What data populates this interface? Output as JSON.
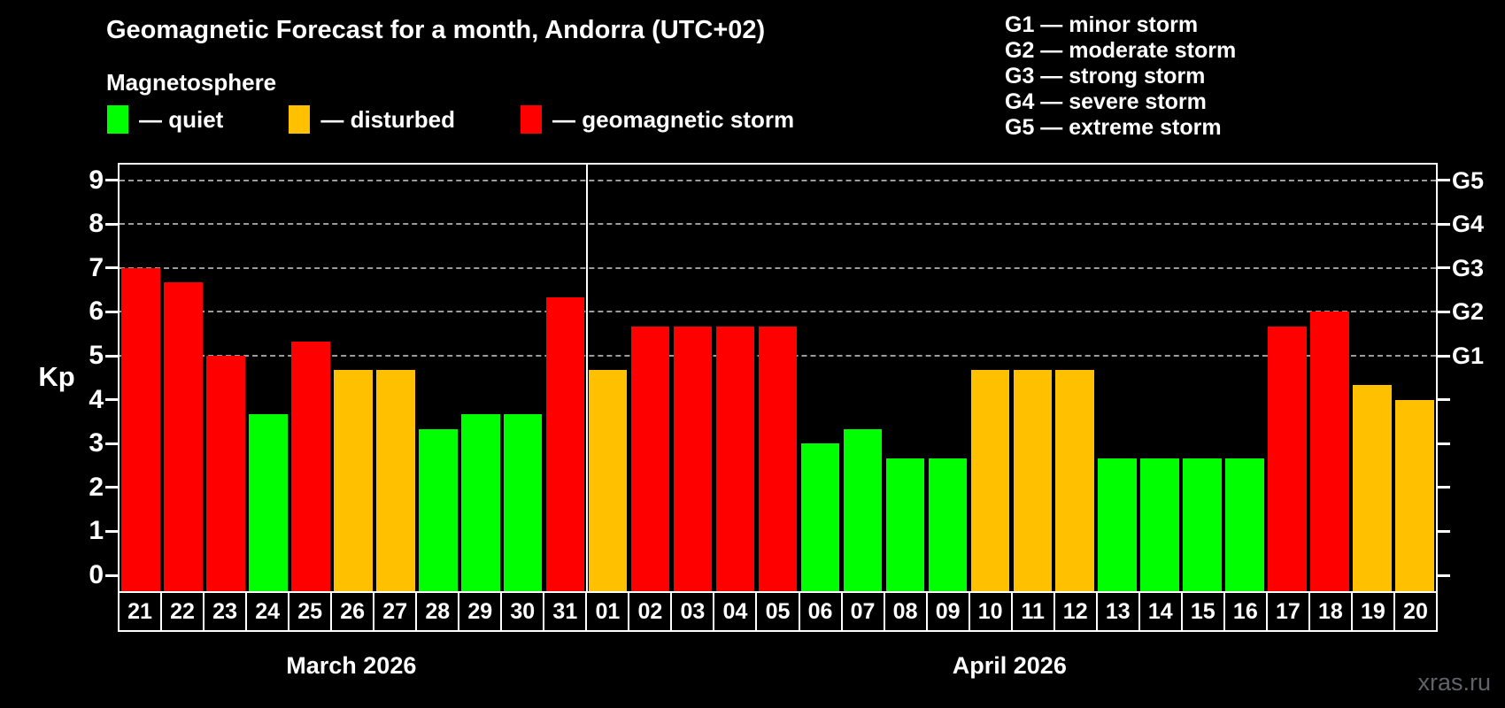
{
  "page": {
    "background": "#000000",
    "watermark": "xras.ru"
  },
  "legend": {
    "items": [
      {
        "key": "quiet",
        "label": "— quiet",
        "color": "#00ff00"
      },
      {
        "key": "disturbed",
        "label": "— disturbed",
        "color": "#ffc000"
      },
      {
        "key": "storm",
        "label": "— geomagnetic storm",
        "color": "#ff0000"
      }
    ]
  },
  "storm_scale": [
    {
      "code": "G1",
      "label": "G1 — minor storm"
    },
    {
      "code": "G2",
      "label": "G2 — moderate storm"
    },
    {
      "code": "G3",
      "label": "G3 — strong storm"
    },
    {
      "code": "G4",
      "label": "G4 — severe storm"
    },
    {
      "code": "G5",
      "label": "G5 — extreme storm"
    }
  ],
  "chart_data": {
    "type": "bar",
    "title": "Geomagnetic Forecast for a month, Andorra (UTC+02)",
    "subtitle": "Magnetosphere",
    "ylabel": "Kp",
    "ylim": [
      0,
      9
    ],
    "y_ticks": [
      0,
      1,
      2,
      3,
      4,
      5,
      6,
      7,
      8,
      9
    ],
    "gridlines_at_kp": [
      5,
      6,
      7,
      8,
      9
    ],
    "right_axis": [
      {
        "kp": 5,
        "label": "G1"
      },
      {
        "kp": 6,
        "label": "G2"
      },
      {
        "kp": 7,
        "label": "G3"
      },
      {
        "kp": 8,
        "label": "G4"
      },
      {
        "kp": 9,
        "label": "G5"
      }
    ],
    "legend_position": "top-left",
    "grid": "dashed-horizontal-storm-levels-only",
    "status_colors": {
      "quiet": "#00ff00",
      "disturbed": "#ffc000",
      "storm": "#ff0000"
    },
    "months": [
      {
        "label": "March 2026",
        "days": [
          {
            "day": "21",
            "kp": 7.0,
            "status": "storm"
          },
          {
            "day": "22",
            "kp": 6.67,
            "status": "storm"
          },
          {
            "day": "23",
            "kp": 5.0,
            "status": "storm"
          },
          {
            "day": "24",
            "kp": 3.67,
            "status": "quiet"
          },
          {
            "day": "25",
            "kp": 5.33,
            "status": "storm"
          },
          {
            "day": "26",
            "kp": 4.67,
            "status": "disturbed"
          },
          {
            "day": "27",
            "kp": 4.67,
            "status": "disturbed"
          },
          {
            "day": "28",
            "kp": 3.33,
            "status": "quiet"
          },
          {
            "day": "29",
            "kp": 3.67,
            "status": "quiet"
          },
          {
            "day": "30",
            "kp": 3.67,
            "status": "quiet"
          },
          {
            "day": "31",
            "kp": 6.33,
            "status": "storm"
          }
        ]
      },
      {
        "label": "April 2026",
        "days": [
          {
            "day": "01",
            "kp": 4.67,
            "status": "disturbed"
          },
          {
            "day": "02",
            "kp": 5.67,
            "status": "storm"
          },
          {
            "day": "03",
            "kp": 5.67,
            "status": "storm"
          },
          {
            "day": "04",
            "kp": 5.67,
            "status": "storm"
          },
          {
            "day": "05",
            "kp": 5.67,
            "status": "storm"
          },
          {
            "day": "06",
            "kp": 3.0,
            "status": "quiet"
          },
          {
            "day": "07",
            "kp": 3.33,
            "status": "quiet"
          },
          {
            "day": "08",
            "kp": 2.67,
            "status": "quiet"
          },
          {
            "day": "09",
            "kp": 2.67,
            "status": "quiet"
          },
          {
            "day": "10",
            "kp": 4.67,
            "status": "disturbed"
          },
          {
            "day": "11",
            "kp": 4.67,
            "status": "disturbed"
          },
          {
            "day": "12",
            "kp": 4.67,
            "status": "disturbed"
          },
          {
            "day": "13",
            "kp": 2.67,
            "status": "quiet"
          },
          {
            "day": "14",
            "kp": 2.67,
            "status": "quiet"
          },
          {
            "day": "15",
            "kp": 2.67,
            "status": "quiet"
          },
          {
            "day": "16",
            "kp": 2.67,
            "status": "quiet"
          },
          {
            "day": "17",
            "kp": 5.67,
            "status": "storm"
          },
          {
            "day": "18",
            "kp": 6.0,
            "status": "storm"
          },
          {
            "day": "19",
            "kp": 4.33,
            "status": "disturbed"
          },
          {
            "day": "20",
            "kp": 4.0,
            "status": "disturbed"
          }
        ]
      }
    ]
  }
}
